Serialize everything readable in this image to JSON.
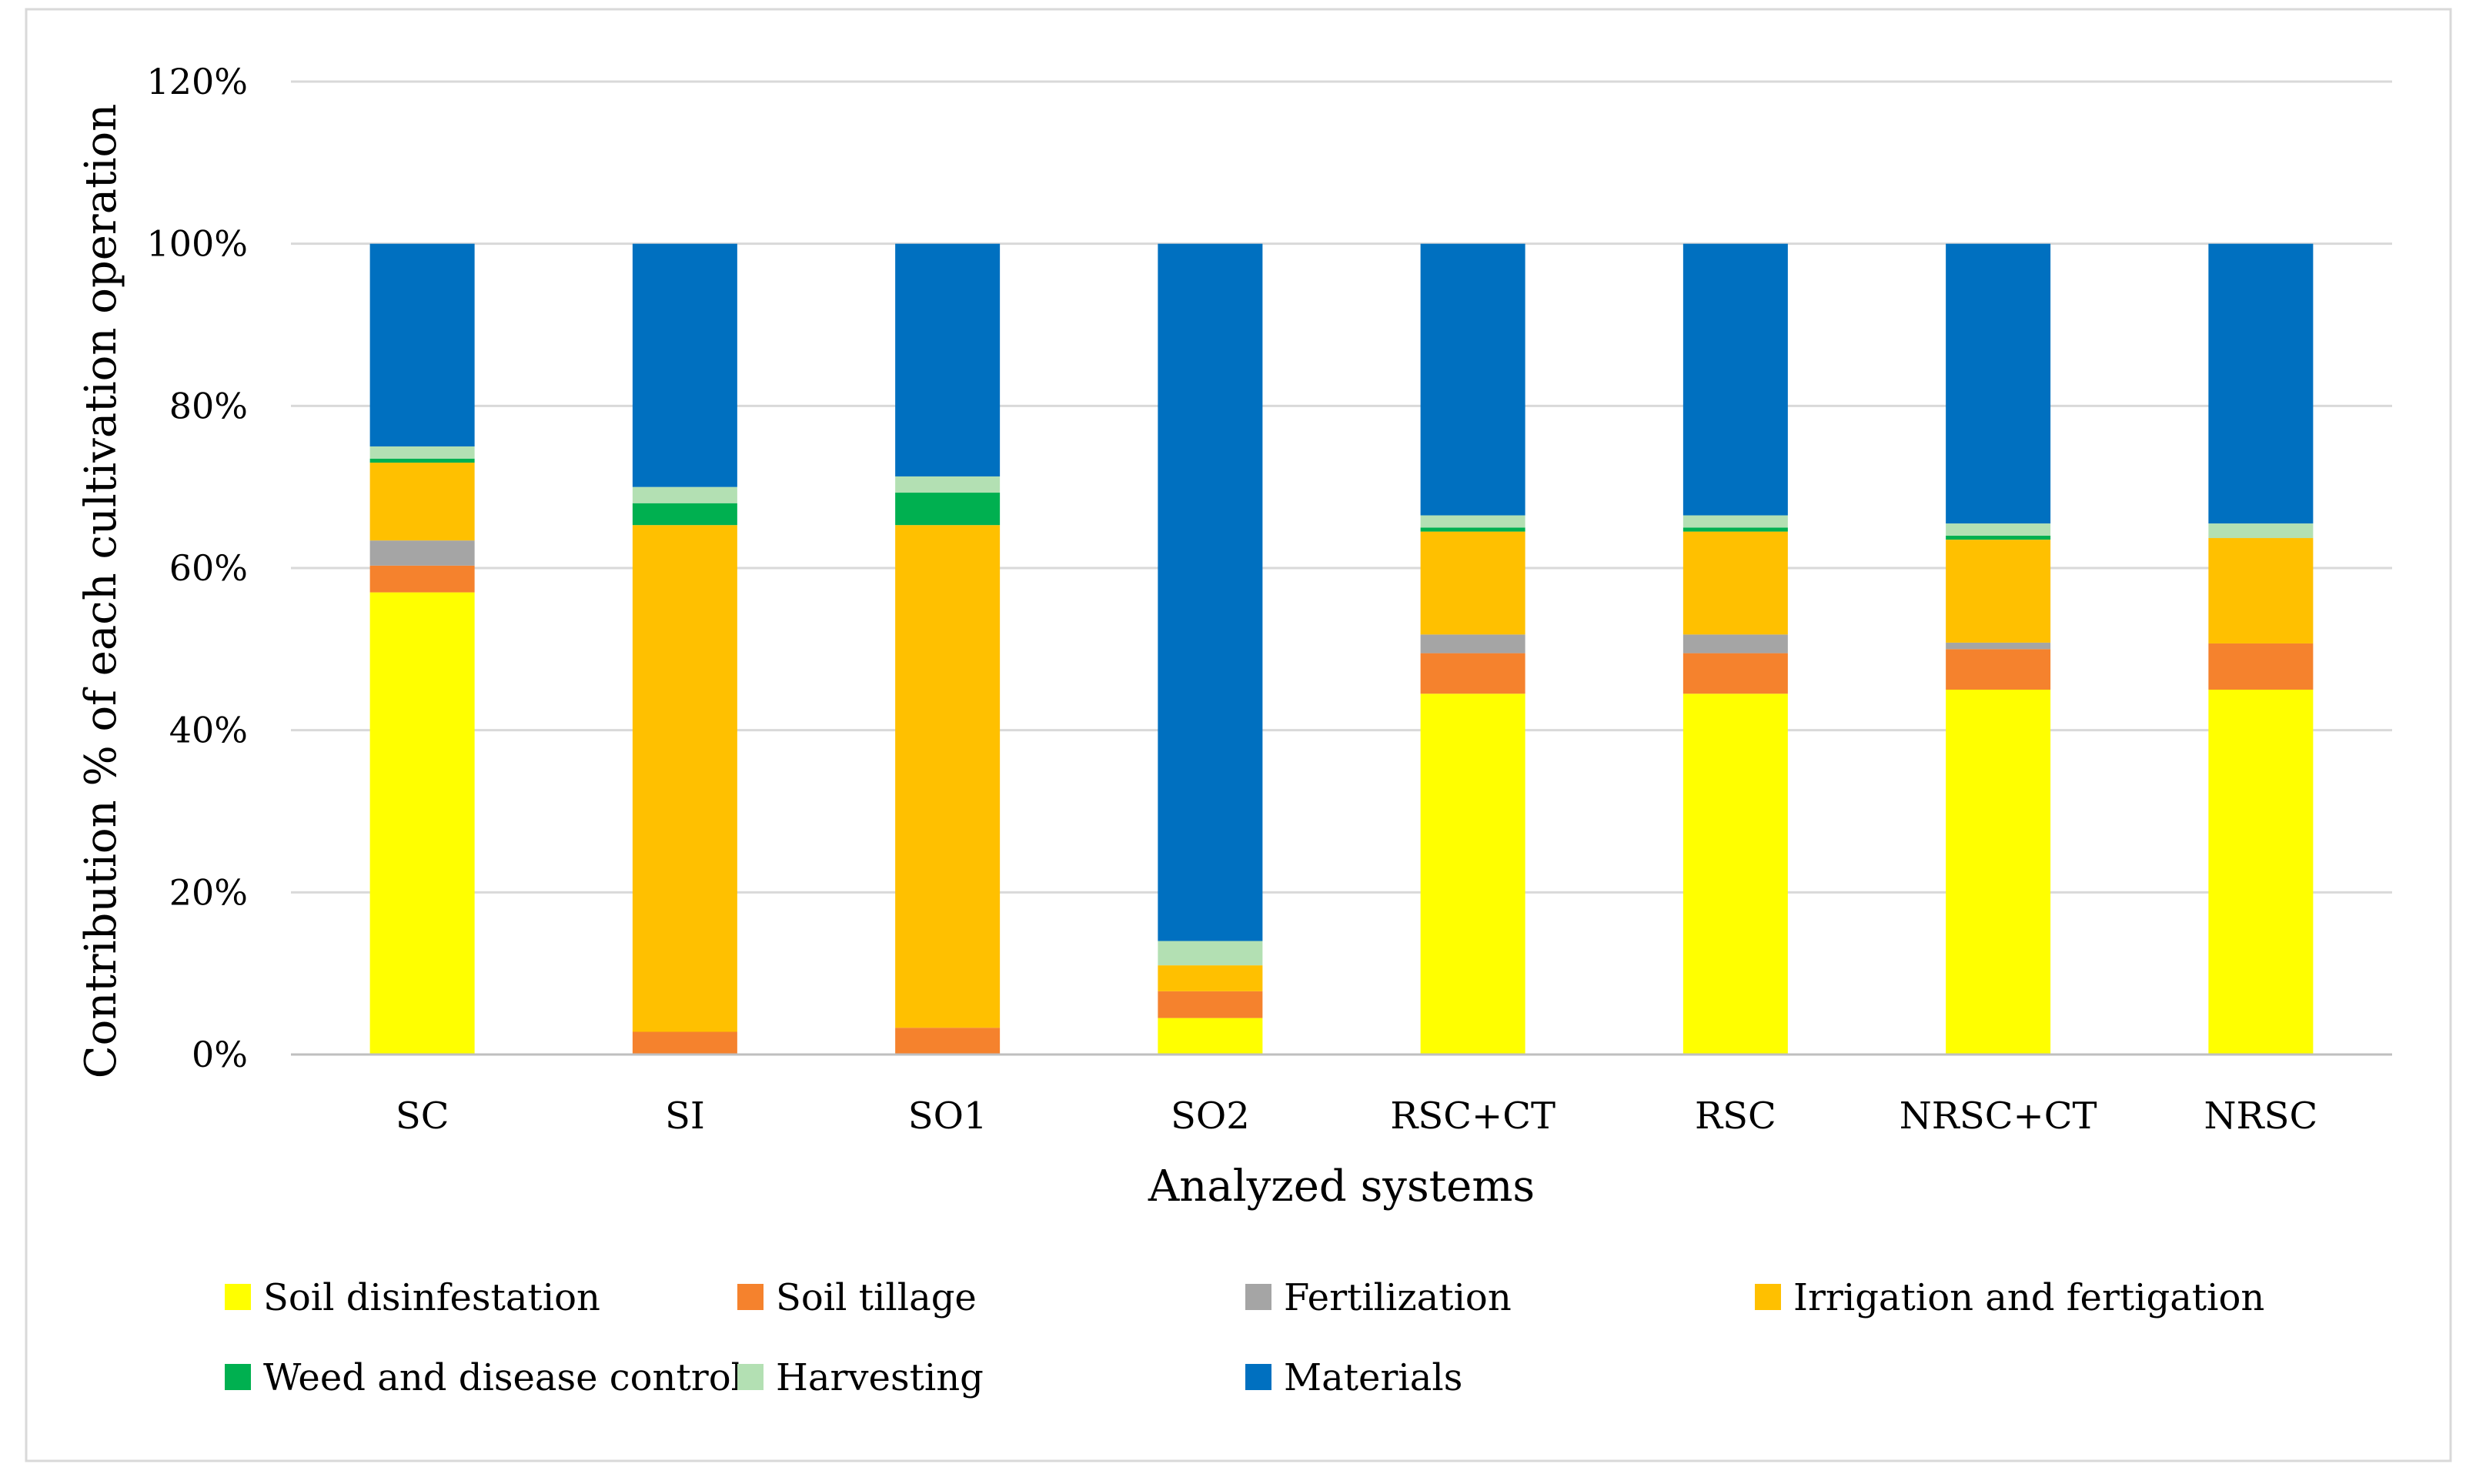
{
  "chart_data": {
    "type": "bar",
    "stacked": true,
    "title": "",
    "xlabel": "Analyzed systems",
    "ylabel": "Contribution % of each cultivation operation",
    "ylim": [
      0,
      120
    ],
    "yticks": [
      0,
      20,
      40,
      60,
      80,
      100,
      120
    ],
    "ytick_labels": [
      "0%",
      "20%",
      "40%",
      "60%",
      "80%",
      "100%",
      "120%"
    ],
    "grid": true,
    "legend_position": "bottom",
    "categories": [
      "SC",
      "SI",
      "SO1",
      "SO2",
      "RSC+CT",
      "RSC",
      "NRSC+CT",
      "NRSC"
    ],
    "series": [
      {
        "name": "Soil disinfestation",
        "color": "#FFFF00",
        "values": [
          57,
          0,
          0,
          4.5,
          44.5,
          44.5,
          45,
          45
        ]
      },
      {
        "name": "Soil tillage",
        "color": "#F5822D",
        "values": [
          3.3,
          2.8,
          3.3,
          3.3,
          5,
          5,
          5,
          5.7
        ]
      },
      {
        "name": "Fertilization",
        "color": "#A5A5A5",
        "values": [
          3.1,
          0,
          0,
          0,
          2.3,
          2.3,
          0.8,
          0
        ]
      },
      {
        "name": "Irrigation and fertigation",
        "color": "#FFC000",
        "values": [
          9.6,
          62.5,
          62,
          3.2,
          12.7,
          12.7,
          12.7,
          13
        ]
      },
      {
        "name": "Weed and disease control",
        "color": "#00B050",
        "values": [
          0.5,
          2.7,
          4,
          0,
          0.5,
          0.5,
          0.5,
          0
        ]
      },
      {
        "name": "Harvesting",
        "color": "#B3E0B3",
        "values": [
          1.5,
          2,
          2,
          3,
          1.5,
          1.5,
          1.5,
          1.8
        ]
      },
      {
        "name": "Materials",
        "color": "#0070C0",
        "values": [
          25,
          30,
          28.7,
          86,
          33.5,
          33.5,
          34.5,
          34.5
        ]
      }
    ]
  }
}
